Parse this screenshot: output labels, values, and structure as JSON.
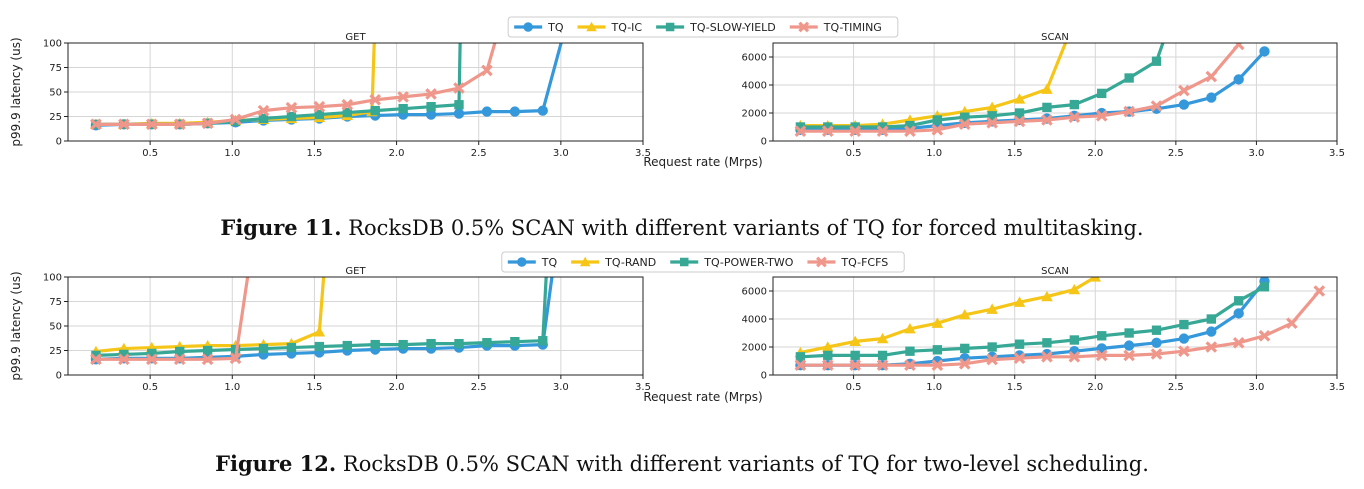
{
  "shared": {
    "ylabel": "p99.9 latency (us)",
    "xlabel": "Request rate (Mrps)"
  },
  "captions": [
    {
      "label": "Figure 11.",
      "text": "RocksDB 0.5% SCAN with different variants of TQ for forced multitasking."
    },
    {
      "label": "Figure 12.",
      "text": "RocksDB 0.5% SCAN with different variants of TQ for two-level scheduling."
    }
  ],
  "legends": [
    {
      "entries": [
        {
          "name": "TQ",
          "color": "#3498db",
          "marker": "circle"
        },
        {
          "name": "TQ-IC",
          "color": "#f5c518",
          "marker": "triangle"
        },
        {
          "name": "TQ-SLOW-YIELD",
          "color": "#36a895",
          "marker": "square"
        },
        {
          "name": "TQ-TIMING",
          "color": "#f0978c",
          "marker": "x"
        }
      ]
    },
    {
      "entries": [
        {
          "name": "TQ",
          "color": "#3498db",
          "marker": "circle"
        },
        {
          "name": "TQ-RAND",
          "color": "#f5c518",
          "marker": "triangle"
        },
        {
          "name": "TQ-POWER-TWO",
          "color": "#36a895",
          "marker": "square"
        },
        {
          "name": "TQ-FCFS",
          "color": "#f0978c",
          "marker": "x"
        }
      ]
    }
  ],
  "chart_data": [
    {
      "type": "line",
      "title": "GET",
      "xlim": [
        0,
        3.5
      ],
      "ylim": [
        0,
        100
      ],
      "xticks": [
        0.5,
        1.0,
        1.5,
        2.0,
        2.5,
        3.0,
        3.5
      ],
      "xtick_labels": [
        "0.5",
        "1.0",
        "1.5",
        "2.0",
        "2.5",
        "3.0",
        "3.5"
      ],
      "yticks": [
        0,
        25,
        50,
        75,
        100
      ],
      "ytick_labels": [
        "0",
        "25",
        "50",
        "75",
        "100"
      ],
      "series": [
        {
          "name": "TQ",
          "color": "#3498db",
          "marker": "circle",
          "x": [
            0.17,
            0.34,
            0.51,
            0.68,
            0.85,
            1.02,
            1.19,
            1.36,
            1.53,
            1.7,
            1.87,
            2.04,
            2.21,
            2.38,
            2.55,
            2.72,
            2.89,
            3.05
          ],
          "y": [
            16,
            17,
            17,
            17,
            18,
            19,
            21,
            22,
            23,
            25,
            26,
            27,
            27,
            28,
            30,
            30,
            31,
            130
          ]
        },
        {
          "name": "TQ-IC",
          "color": "#f5c518",
          "marker": "triangle",
          "x": [
            0.17,
            0.34,
            0.51,
            0.68,
            0.85,
            1.02,
            1.19,
            1.36,
            1.53,
            1.7,
            1.85,
            1.87
          ],
          "y": [
            17,
            17,
            18,
            18,
            19,
            21,
            22,
            23,
            24,
            26,
            30,
            130
          ]
        },
        {
          "name": "TQ-SLOW-YIELD",
          "color": "#36a895",
          "marker": "square",
          "x": [
            0.17,
            0.34,
            0.51,
            0.68,
            0.85,
            1.02,
            1.19,
            1.36,
            1.53,
            1.7,
            1.87,
            2.04,
            2.21,
            2.38,
            2.39
          ],
          "y": [
            17,
            17,
            17,
            17,
            18,
            20,
            23,
            25,
            27,
            29,
            31,
            33,
            35,
            37,
            130
          ]
        },
        {
          "name": "TQ-TIMING",
          "color": "#f0978c",
          "marker": "x",
          "x": [
            0.17,
            0.34,
            0.51,
            0.68,
            0.85,
            1.02,
            1.19,
            1.36,
            1.53,
            1.7,
            1.87,
            2.04,
            2.21,
            2.38,
            2.55,
            2.65
          ],
          "y": [
            17,
            17,
            17,
            17,
            18,
            22,
            31,
            34,
            35,
            37,
            42,
            45,
            48,
            54,
            72,
            130
          ]
        }
      ]
    },
    {
      "type": "line",
      "title": "SCAN",
      "xlim": [
        0,
        3.5
      ],
      "ylim": [
        0,
        7000
      ],
      "xticks": [
        0.5,
        1.0,
        1.5,
        2.0,
        2.5,
        3.0,
        3.5
      ],
      "xtick_labels": [
        "0.5",
        "1.0",
        "1.5",
        "2.0",
        "2.5",
        "3.0",
        "3.5"
      ],
      "yticks": [
        0,
        2000,
        4000,
        6000
      ],
      "ytick_labels": [
        "0",
        "2000",
        "4000",
        "6000"
      ],
      "series": [
        {
          "name": "TQ",
          "color": "#3498db",
          "marker": "circle",
          "x": [
            0.17,
            0.34,
            0.51,
            0.68,
            0.85,
            1.02,
            1.19,
            1.36,
            1.53,
            1.7,
            1.87,
            2.04,
            2.21,
            2.38,
            2.55,
            2.72,
            2.89,
            3.05
          ],
          "y": [
            800,
            800,
            800,
            800,
            900,
            1100,
            1300,
            1400,
            1500,
            1600,
            1800,
            2000,
            2100,
            2300,
            2600,
            3100,
            4400,
            6400
          ]
        },
        {
          "name": "TQ-IC",
          "color": "#f5c518",
          "marker": "triangle",
          "x": [
            0.17,
            0.34,
            0.51,
            0.68,
            0.85,
            1.02,
            1.19,
            1.36,
            1.53,
            1.7,
            1.85
          ],
          "y": [
            1100,
            1100,
            1100,
            1200,
            1500,
            1800,
            2100,
            2400,
            3000,
            3700,
            8000
          ]
        },
        {
          "name": "TQ-SLOW-YIELD",
          "color": "#36a895",
          "marker": "square",
          "x": [
            0.17,
            0.34,
            0.51,
            0.68,
            0.85,
            1.02,
            1.19,
            1.36,
            1.53,
            1.7,
            1.87,
            2.04,
            2.21,
            2.38,
            2.45
          ],
          "y": [
            1000,
            1000,
            1000,
            1000,
            1100,
            1500,
            1700,
            1800,
            2000,
            2400,
            2600,
            3400,
            4500,
            5700,
            8000
          ]
        },
        {
          "name": "TQ-TIMING",
          "color": "#f0978c",
          "marker": "x",
          "x": [
            0.17,
            0.34,
            0.51,
            0.68,
            0.85,
            1.02,
            1.19,
            1.36,
            1.53,
            1.7,
            1.87,
            2.04,
            2.21,
            2.38,
            2.55,
            2.72,
            2.89
          ],
          "y": [
            700,
            700,
            700,
            700,
            700,
            800,
            1200,
            1300,
            1400,
            1500,
            1700,
            1800,
            2100,
            2500,
            3600,
            4600,
            6900
          ]
        }
      ]
    },
    {
      "type": "line",
      "title": "GET",
      "xlim": [
        0,
        3.5
      ],
      "ylim": [
        0,
        100
      ],
      "xticks": [
        0.5,
        1.0,
        1.5,
        2.0,
        2.5,
        3.0,
        3.5
      ],
      "xtick_labels": [
        "0.5",
        "1.0",
        "1.5",
        "2.0",
        "2.5",
        "3.0",
        "3.5"
      ],
      "yticks": [
        0,
        25,
        50,
        75,
        100
      ],
      "ytick_labels": [
        "0",
        "25",
        "50",
        "75",
        "100"
      ],
      "series": [
        {
          "name": "TQ",
          "color": "#3498db",
          "marker": "circle",
          "x": [
            0.17,
            0.34,
            0.51,
            0.68,
            0.85,
            1.02,
            1.19,
            1.36,
            1.53,
            1.7,
            1.87,
            2.04,
            2.21,
            2.38,
            2.55,
            2.72,
            2.89,
            2.97
          ],
          "y": [
            16,
            17,
            17,
            17,
            18,
            19,
            21,
            22,
            23,
            25,
            26,
            27,
            27,
            28,
            30,
            30,
            31,
            130
          ]
        },
        {
          "name": "TQ-RAND",
          "color": "#f5c518",
          "marker": "triangle",
          "x": [
            0.17,
            0.34,
            0.51,
            0.68,
            0.85,
            1.02,
            1.19,
            1.36,
            1.53,
            1.57
          ],
          "y": [
            24,
            27,
            28,
            29,
            30,
            30,
            31,
            32,
            44,
            130
          ]
        },
        {
          "name": "TQ-POWER-TWO",
          "color": "#36a895",
          "marker": "square",
          "x": [
            0.17,
            0.34,
            0.51,
            0.68,
            0.85,
            1.02,
            1.19,
            1.36,
            1.53,
            1.7,
            1.87,
            2.04,
            2.21,
            2.38,
            2.55,
            2.72,
            2.89,
            2.92
          ],
          "y": [
            20,
            21,
            22,
            24,
            25,
            26,
            27,
            28,
            29,
            30,
            31,
            31,
            32,
            32,
            33,
            34,
            35,
            130
          ]
        },
        {
          "name": "TQ-FCFS",
          "color": "#f0978c",
          "marker": "x",
          "x": [
            0.17,
            0.34,
            0.51,
            0.68,
            0.85,
            1.02,
            1.12
          ],
          "y": [
            16,
            16,
            16,
            16,
            16,
            17,
            130
          ]
        }
      ]
    },
    {
      "type": "line",
      "title": "SCAN",
      "xlim": [
        0,
        3.5
      ],
      "ylim": [
        0,
        7000
      ],
      "xticks": [
        0.5,
        1.0,
        1.5,
        2.0,
        2.5,
        3.0,
        3.5
      ],
      "xtick_labels": [
        "0.5",
        "1.0",
        "1.5",
        "2.0",
        "2.5",
        "3.0",
        "3.5"
      ],
      "yticks": [
        0,
        2000,
        4000,
        6000
      ],
      "ytick_labels": [
        "0",
        "2000",
        "4000",
        "6000"
      ],
      "series": [
        {
          "name": "TQ",
          "color": "#3498db",
          "marker": "circle",
          "x": [
            0.17,
            0.34,
            0.51,
            0.68,
            0.85,
            1.02,
            1.19,
            1.36,
            1.53,
            1.7,
            1.87,
            2.04,
            2.21,
            2.38,
            2.55,
            2.72,
            2.89,
            3.05
          ],
          "y": [
            700,
            700,
            700,
            700,
            800,
            1000,
            1200,
            1300,
            1400,
            1500,
            1700,
            1900,
            2100,
            2300,
            2600,
            3100,
            4400,
            6700
          ]
        },
        {
          "name": "TQ-RAND",
          "color": "#f5c518",
          "marker": "triangle",
          "x": [
            0.17,
            0.34,
            0.51,
            0.68,
            0.85,
            1.02,
            1.19,
            1.36,
            1.53,
            1.7,
            1.87,
            2.0
          ],
          "y": [
            1600,
            2000,
            2400,
            2600,
            3300,
            3700,
            4300,
            4700,
            5200,
            5600,
            6100,
            7000
          ]
        },
        {
          "name": "TQ-POWER-TWO",
          "color": "#36a895",
          "marker": "square",
          "x": [
            0.17,
            0.34,
            0.51,
            0.68,
            0.85,
            1.02,
            1.19,
            1.36,
            1.53,
            1.7,
            1.87,
            2.04,
            2.21,
            2.38,
            2.55,
            2.72,
            2.89,
            3.05
          ],
          "y": [
            1300,
            1400,
            1400,
            1400,
            1700,
            1800,
            1900,
            2000,
            2200,
            2300,
            2500,
            2800,
            3000,
            3200,
            3600,
            4000,
            5300,
            6300
          ]
        },
        {
          "name": "TQ-FCFS",
          "color": "#f0978c",
          "marker": "x",
          "x": [
            0.17,
            0.34,
            0.51,
            0.68,
            0.85,
            1.02,
            1.19,
            1.36,
            1.53,
            1.7,
            1.87,
            2.04,
            2.21,
            2.38,
            2.55,
            2.72,
            2.89,
            3.05,
            3.22,
            3.39
          ],
          "y": [
            700,
            700,
            700,
            700,
            700,
            700,
            800,
            1100,
            1200,
            1300,
            1300,
            1400,
            1400,
            1500,
            1700,
            2000,
            2300,
            2800,
            3700,
            6000
          ]
        }
      ]
    }
  ]
}
